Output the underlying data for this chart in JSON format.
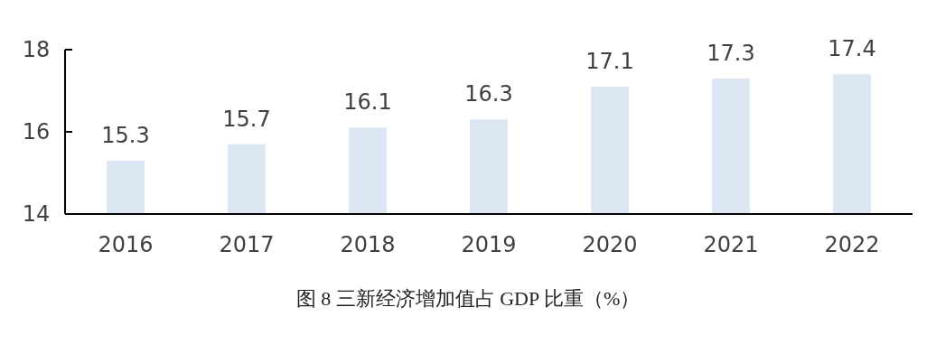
{
  "chart_data": {
    "type": "bar",
    "title": "图 8 三新经济增加值占 GDP 比重（%）",
    "categories": [
      "2016",
      "2017",
      "2018",
      "2019",
      "2020",
      "2021",
      "2022"
    ],
    "values": [
      15.3,
      15.7,
      16.1,
      16.3,
      17.1,
      17.3,
      17.4
    ],
    "color": "#dce7f3",
    "ylim": [
      14,
      18
    ],
    "yticks": [
      14,
      16,
      18
    ],
    "grid": false,
    "data_labels": true
  }
}
